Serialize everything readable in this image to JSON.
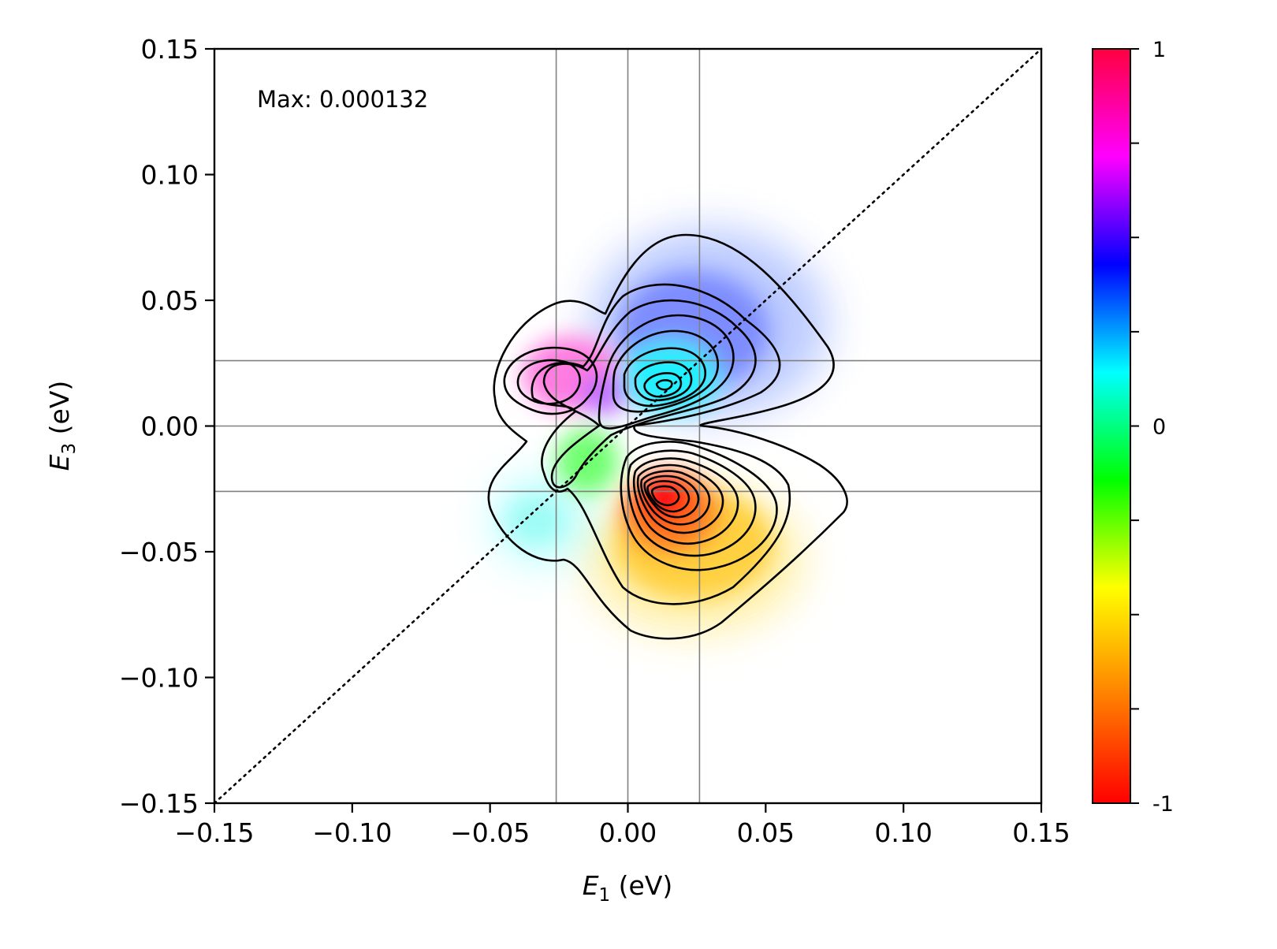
{
  "chart_data": {
    "type": "heatmap",
    "subtype": "2D spectrum with contour lines",
    "xlabel": {
      "symbol": "E",
      "subscript": "1",
      "unit": " (eV)"
    },
    "ylabel": {
      "symbol": "E",
      "subscript": "3",
      "unit": " (eV)"
    },
    "xlim": [
      -0.15,
      0.15
    ],
    "ylim": [
      -0.15,
      0.15
    ],
    "x_ticks": [
      -0.15,
      -0.1,
      -0.05,
      0.0,
      0.05,
      0.1,
      0.15
    ],
    "y_ticks": [
      -0.15,
      -0.1,
      -0.05,
      0.0,
      0.05,
      0.1,
      0.15
    ],
    "x_tick_labels": [
      "−0.15",
      "−0.10",
      "−0.05",
      "0.00",
      "0.05",
      "0.10",
      "0.15"
    ],
    "y_tick_labels": [
      "−0.15",
      "−0.10",
      "−0.05",
      "0.00",
      "0.05",
      "0.10",
      "0.15"
    ],
    "annotation": "Max: 0.000132",
    "reference_lines": {
      "vertical_x": [
        -0.026,
        0.0,
        0.026
      ],
      "horizontal_y": [
        0.026,
        0.0,
        -0.026
      ],
      "diagonal": "y = x (dotted)"
    },
    "colorbar": {
      "range": [
        -1,
        1
      ],
      "labels": [
        {
          "value": 1,
          "text": "1"
        },
        {
          "value": 0,
          "text": "0"
        },
        {
          "value": -1,
          "text": "-1"
        }
      ],
      "minor_ticks": [
        0.75,
        0.5,
        0.25,
        -0.25,
        -0.5,
        -0.75
      ],
      "colormap": [
        "#ff0000",
        "#ff8000",
        "#ffff00",
        "#00ff00",
        "#00ffff",
        "#0000ff",
        "#ff00ff",
        "#ff0040"
      ]
    },
    "features": [
      {
        "name": "negative peak (red)",
        "x": 0.014,
        "y": -0.03,
        "value": -1.0
      },
      {
        "name": "lower lobe (orange/yellow)",
        "x": 0.03,
        "y": -0.05,
        "value": -0.75
      },
      {
        "name": "positive peak (cyan)",
        "x": 0.016,
        "y": 0.017,
        "value": 0.0
      },
      {
        "name": "upper lobe (blue)",
        "x": 0.026,
        "y": 0.035,
        "value": 0.3
      },
      {
        "name": "left lobe (magenta)",
        "x": -0.018,
        "y": 0.016,
        "value": 0.8
      },
      {
        "name": "cross band (green)",
        "x": -0.01,
        "y": -0.01,
        "value": -0.5
      },
      {
        "name": "lower-left lobe (cyan)",
        "x": -0.035,
        "y": -0.035,
        "value": 0.0
      }
    ]
  }
}
